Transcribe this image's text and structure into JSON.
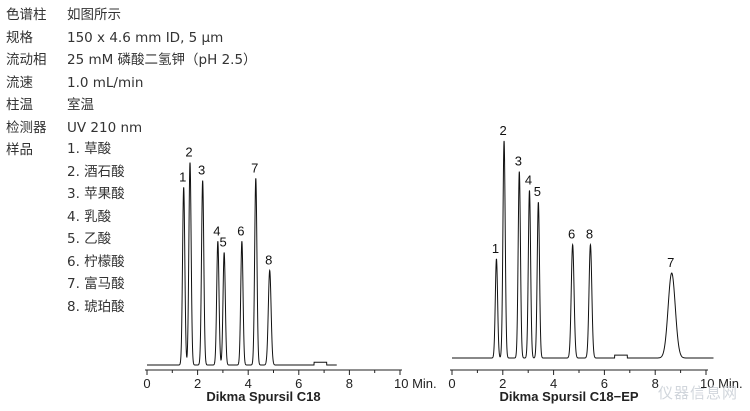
{
  "conditions": [
    {
      "label": "色谱柱",
      "value": "如图所示"
    },
    {
      "label": "规格",
      "value": "150 x 4.6 mm ID, 5 μm"
    },
    {
      "label": "流动相",
      "value": "25 mM 磷酸二氢钾（pH 2.5）"
    },
    {
      "label": "流速",
      "value": "1.0 mL/min"
    },
    {
      "label": "柱温",
      "value": "室温"
    },
    {
      "label": "检测器",
      "value": "UV 210 nm"
    },
    {
      "label": "样品",
      "value": ""
    }
  ],
  "samples": [
    "1. 草酸",
    "2. 酒石酸",
    "3. 苹果酸",
    "4. 乳酸",
    "5. 乙酸",
    "6. 柠檬酸",
    "7. 富马酸",
    "8. 琥珀酸"
  ],
  "watermark": "仪器信息网",
  "chart_data": [
    {
      "type": "line",
      "title": "Dikma Spursil C18",
      "x_unit": "Min.",
      "xlim": [
        0,
        10
      ],
      "x_ticks": [
        0,
        2,
        4,
        6,
        8,
        10
      ],
      "x_tick_labels": [
        "0",
        "2",
        "4",
        "6",
        "8",
        "10 Min."
      ],
      "peaks": [
        {
          "label": "1",
          "rt": 1.45,
          "height": 0.79
        },
        {
          "label": "2",
          "rt": 1.7,
          "height": 0.9
        },
        {
          "label": "3",
          "rt": 2.2,
          "height": 0.82
        },
        {
          "label": "4",
          "rt": 2.8,
          "height": 0.55
        },
        {
          "label": "5",
          "rt": 3.05,
          "height": 0.5
        },
        {
          "label": "6",
          "rt": 3.75,
          "height": 0.55
        },
        {
          "label": "7",
          "rt": 4.3,
          "height": 0.83
        },
        {
          "label": "8",
          "rt": 4.85,
          "height": 0.42
        }
      ]
    },
    {
      "type": "line",
      "title": "Dikma Spursil C18−EP",
      "x_unit": "Min.",
      "xlim": [
        0,
        10
      ],
      "x_ticks": [
        0,
        2,
        4,
        6,
        8,
        10
      ],
      "x_tick_labels": [
        "0",
        "2",
        "4",
        "6",
        "8",
        "10 Min."
      ],
      "peaks": [
        {
          "label": "1",
          "rt": 1.75,
          "height": 0.42
        },
        {
          "label": "2",
          "rt": 2.05,
          "height": 0.92
        },
        {
          "label": "3",
          "rt": 2.65,
          "height": 0.79
        },
        {
          "label": "4",
          "rt": 3.05,
          "height": 0.71
        },
        {
          "label": "5",
          "rt": 3.4,
          "height": 0.66
        },
        {
          "label": "6",
          "rt": 4.75,
          "height": 0.48
        },
        {
          "label": "8",
          "rt": 5.45,
          "height": 0.48
        },
        {
          "label": "7",
          "rt": 8.65,
          "height": 0.36
        }
      ]
    }
  ]
}
